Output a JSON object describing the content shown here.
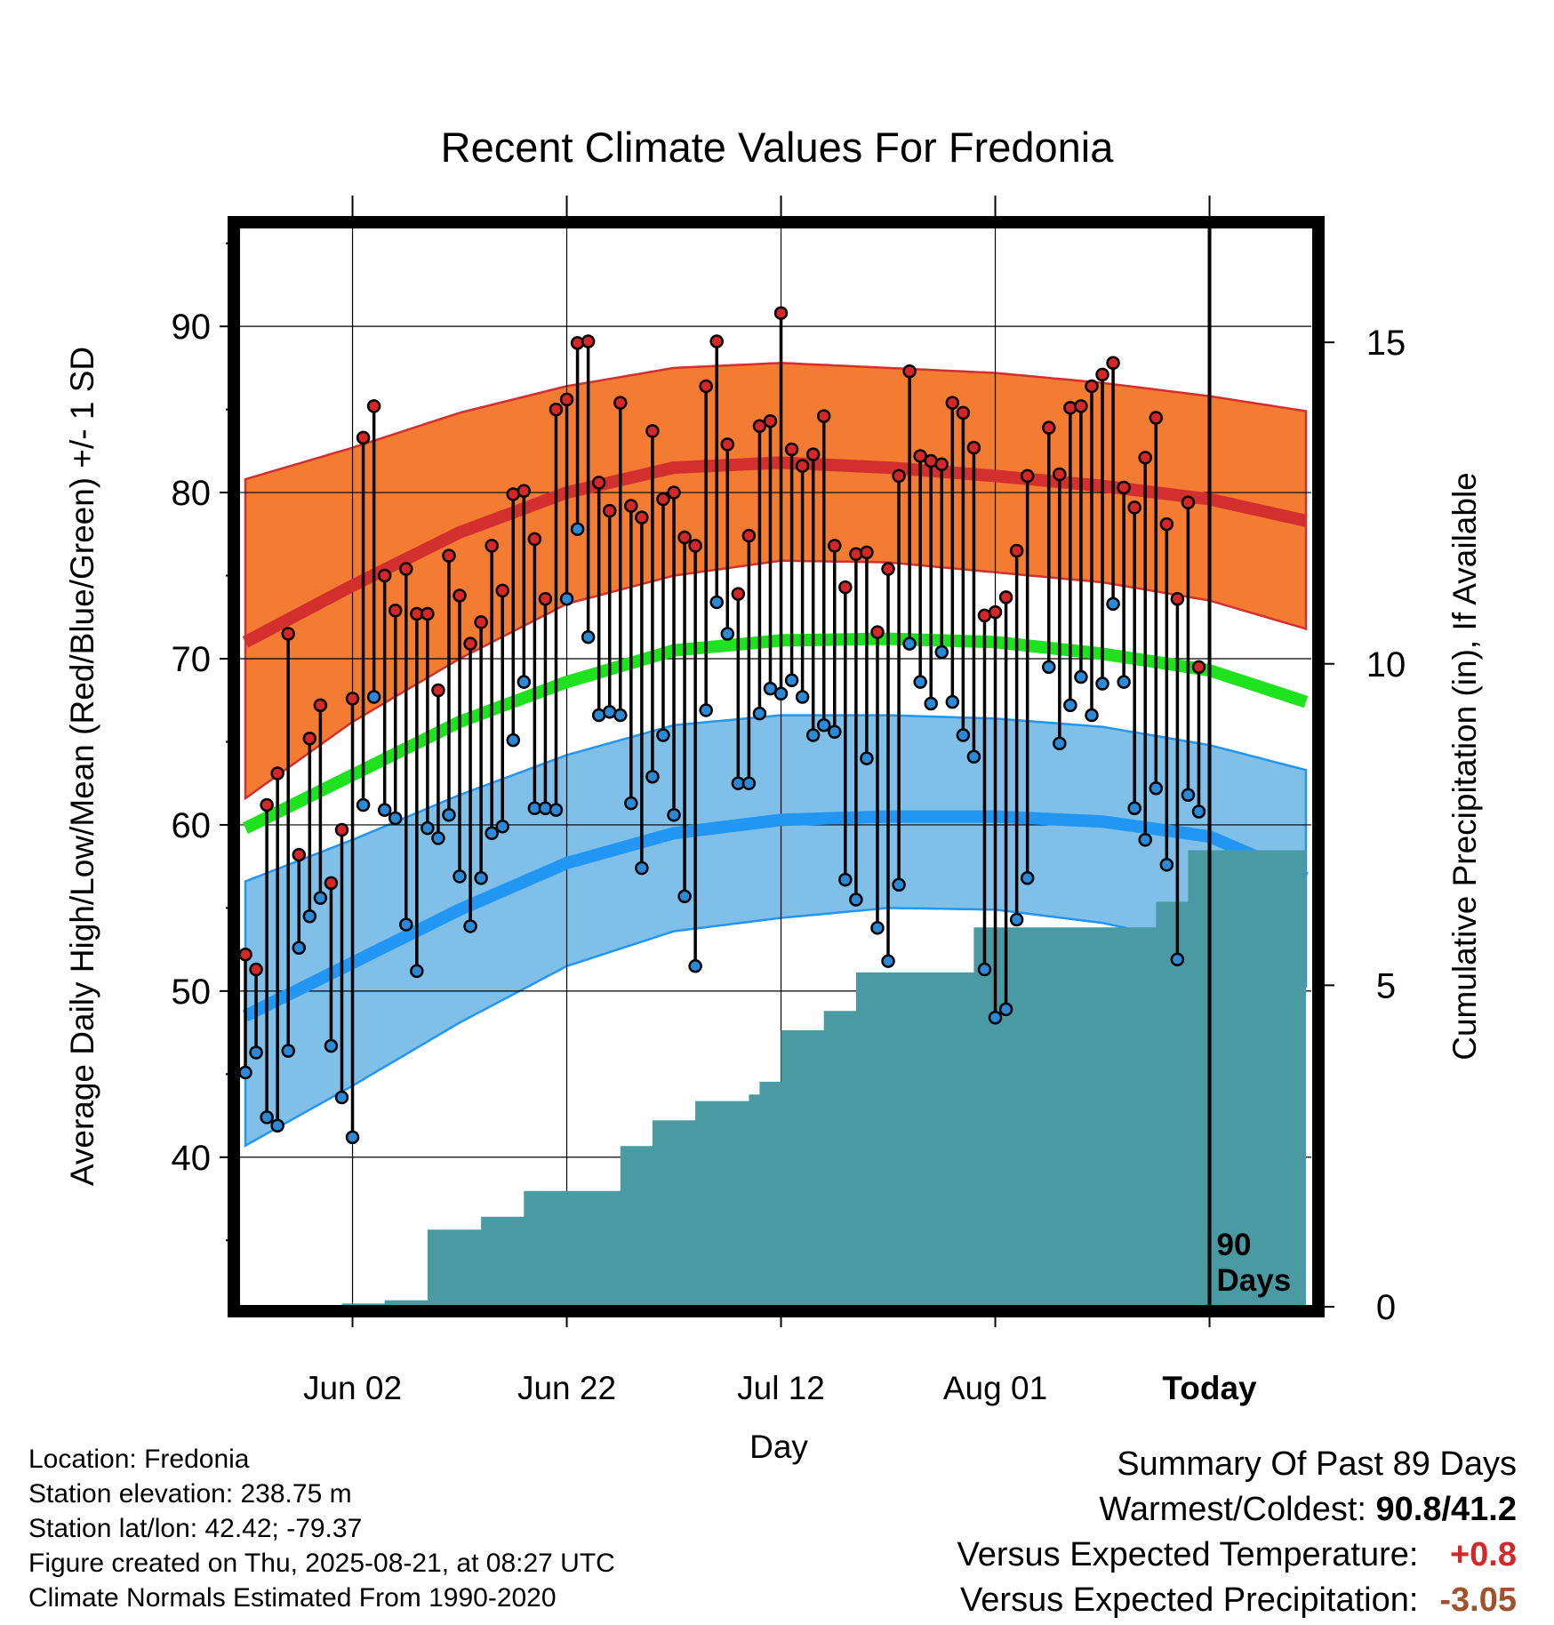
{
  "chart_data": {
    "type": "line",
    "title": "Recent Climate Values For Fredonia",
    "xlabel": "Day",
    "ylabel": "Average Daily High/Low/Mean (Red/Blue/Green) +/- 1 SD",
    "y2label": "Cumulative Precipitation (in), If Available",
    "x_tick_labels": [
      "Jun 02",
      "Jun 22",
      "Jul 12",
      "Aug 01",
      "Today"
    ],
    "x_tick_days": [
      10,
      30,
      50,
      70,
      90
    ],
    "x_range_days": [
      -0.5,
      99.5
    ],
    "y_ticks": [
      40,
      50,
      60,
      70,
      80,
      90
    ],
    "ylim": [
      31,
      96
    ],
    "y2_ticks": [
      0,
      5,
      10,
      15
    ],
    "y2lim": [
      0,
      16.8
    ],
    "today_marker": {
      "day": 90,
      "label_line1": "90",
      "label_line2": "Days"
    },
    "normal_high": {
      "days": [
        0,
        10,
        20,
        30,
        40,
        50,
        60,
        70,
        80,
        90,
        99
      ],
      "mean": [
        71.0,
        74.4,
        77.6,
        80.0,
        81.5,
        81.8,
        81.5,
        81.0,
        80.4,
        79.6,
        78.3
      ],
      "upper": [
        80.8,
        82.7,
        84.8,
        86.4,
        87.5,
        87.8,
        87.5,
        87.2,
        86.6,
        85.8,
        84.9
      ],
      "lower": [
        61.6,
        66.2,
        70.0,
        73.3,
        75.0,
        75.9,
        75.8,
        75.2,
        74.6,
        73.5,
        71.8
      ]
    },
    "normal_mean": {
      "days": [
        0,
        10,
        20,
        30,
        40,
        50,
        60,
        70,
        80,
        90,
        99
      ],
      "mean": [
        59.8,
        63.0,
        66.2,
        68.6,
        70.5,
        71.1,
        71.2,
        71.0,
        70.3,
        69.3,
        67.4
      ]
    },
    "normal_low": {
      "days": [
        0,
        10,
        20,
        30,
        40,
        50,
        60,
        70,
        80,
        90,
        99
      ],
      "mean": [
        48.5,
        51.7,
        54.9,
        57.7,
        59.5,
        60.3,
        60.5,
        60.5,
        60.2,
        59.3,
        56.8
      ],
      "upper": [
        56.6,
        59.1,
        61.8,
        64.2,
        66.0,
        66.6,
        66.6,
        66.4,
        65.9,
        64.8,
        63.3
      ],
      "lower": [
        40.7,
        44.3,
        48.1,
        51.5,
        53.6,
        54.4,
        55.0,
        54.9,
        54.1,
        52.7,
        50.3
      ]
    },
    "daily_highs": [
      52.2,
      51.3,
      61.2,
      63.1,
      71.5,
      58.2,
      65.2,
      67.2,
      56.5,
      59.7,
      67.6,
      83.3,
      85.2,
      75.0,
      72.9,
      75.4,
      72.7,
      72.7,
      68.1,
      76.2,
      73.8,
      70.9,
      72.2,
      76.8,
      74.1,
      79.9,
      80.1,
      77.2,
      73.6,
      85.0,
      85.6,
      89.0,
      89.1,
      80.6,
      78.9,
      85.4,
      79.2,
      78.5,
      83.7,
      79.6,
      80.0,
      77.3,
      76.8,
      86.4,
      89.1,
      82.9,
      73.9,
      77.4,
      84.0,
      84.3,
      90.8,
      82.6,
      81.6,
      82.3,
      84.6,
      76.8,
      74.3,
      76.3,
      76.4,
      71.6,
      75.4,
      81.0,
      87.3,
      82.2,
      81.9,
      81.7,
      85.4,
      84.8,
      82.7,
      72.6,
      72.8,
      73.7,
      76.5,
      81.0,
      null,
      83.9,
      81.1,
      85.1,
      85.2,
      86.4,
      87.1,
      87.8,
      80.3,
      79.1,
      82.1,
      84.5,
      78.1,
      73.6,
      79.4,
      69.5
    ],
    "daily_lows": [
      45.1,
      46.3,
      42.4,
      41.9,
      46.4,
      52.6,
      54.5,
      55.6,
      46.7,
      43.6,
      41.2,
      61.2,
      67.7,
      60.9,
      60.4,
      54.0,
      51.2,
      59.8,
      59.2,
      60.6,
      56.9,
      53.9,
      56.8,
      59.5,
      59.9,
      65.1,
      68.6,
      61.0,
      61.0,
      60.9,
      73.6,
      77.8,
      71.3,
      66.6,
      66.8,
      66.6,
      61.3,
      57.4,
      62.9,
      65.4,
      60.6,
      55.7,
      51.5,
      66.9,
      73.4,
      71.5,
      62.5,
      62.5,
      66.7,
      68.2,
      67.9,
      68.7,
      67.7,
      65.4,
      66.0,
      65.6,
      56.7,
      55.5,
      64.0,
      53.8,
      51.8,
      56.4,
      70.9,
      68.6,
      67.3,
      70.4,
      67.4,
      65.4,
      64.1,
      51.3,
      48.4,
      48.9,
      54.3,
      56.8,
      null,
      69.5,
      64.9,
      67.2,
      68.9,
      66.6,
      68.5,
      73.3,
      68.6,
      61.0,
      59.1,
      62.2,
      57.6,
      51.9,
      61.8,
      60.8
    ],
    "cumulative_precip": {
      "days": [
        0,
        8,
        9,
        12,
        13,
        16,
        17,
        21,
        22,
        25,
        26,
        27,
        28,
        34,
        35,
        37,
        38,
        41,
        42,
        46,
        47,
        48,
        49,
        50,
        53,
        54,
        56,
        57,
        67,
        68,
        84,
        85,
        87,
        88,
        99
      ],
      "values": [
        0,
        0,
        0.05,
        0.05,
        0.1,
        0.1,
        1.2,
        1.2,
        1.4,
        1.4,
        1.8,
        1.8,
        1.8,
        1.8,
        2.5,
        2.5,
        2.9,
        2.9,
        3.2,
        3.2,
        3.3,
        3.5,
        3.5,
        4.3,
        4.3,
        4.6,
        4.6,
        5.2,
        5.2,
        5.9,
        5.9,
        6.3,
        6.3,
        7.1,
        7.2
      ]
    }
  },
  "colors": {
    "high_band": "#f47b32",
    "high_mean": "#d32f2f",
    "mean_line": "#1de21d",
    "low_band": "#7fbfe8",
    "low_mean": "#2196f3",
    "precip": "#4a9aa4",
    "high_dot": "#d62728",
    "low_dot": "#2a8ad8"
  },
  "info": {
    "line1": "Location: Fredonia",
    "line2": "Station elevation: 238.75 m",
    "line3": "Station lat/lon: 42.42; -79.37",
    "line4": "Figure created on Thu, 2025-08-21, at 08:27 UTC",
    "line5": "Climate Normals Estimated From 1990-2020"
  },
  "summary": {
    "title": "Summary Of Past 89 Days",
    "warm_label": "Warmest/Coldest:",
    "warm_value": "90.8/41.2",
    "temp_label": "Versus Expected Temperature:",
    "temp_value": "+0.8",
    "precip_label": "Versus Expected Precipitation:",
    "precip_value": "-3.05"
  }
}
